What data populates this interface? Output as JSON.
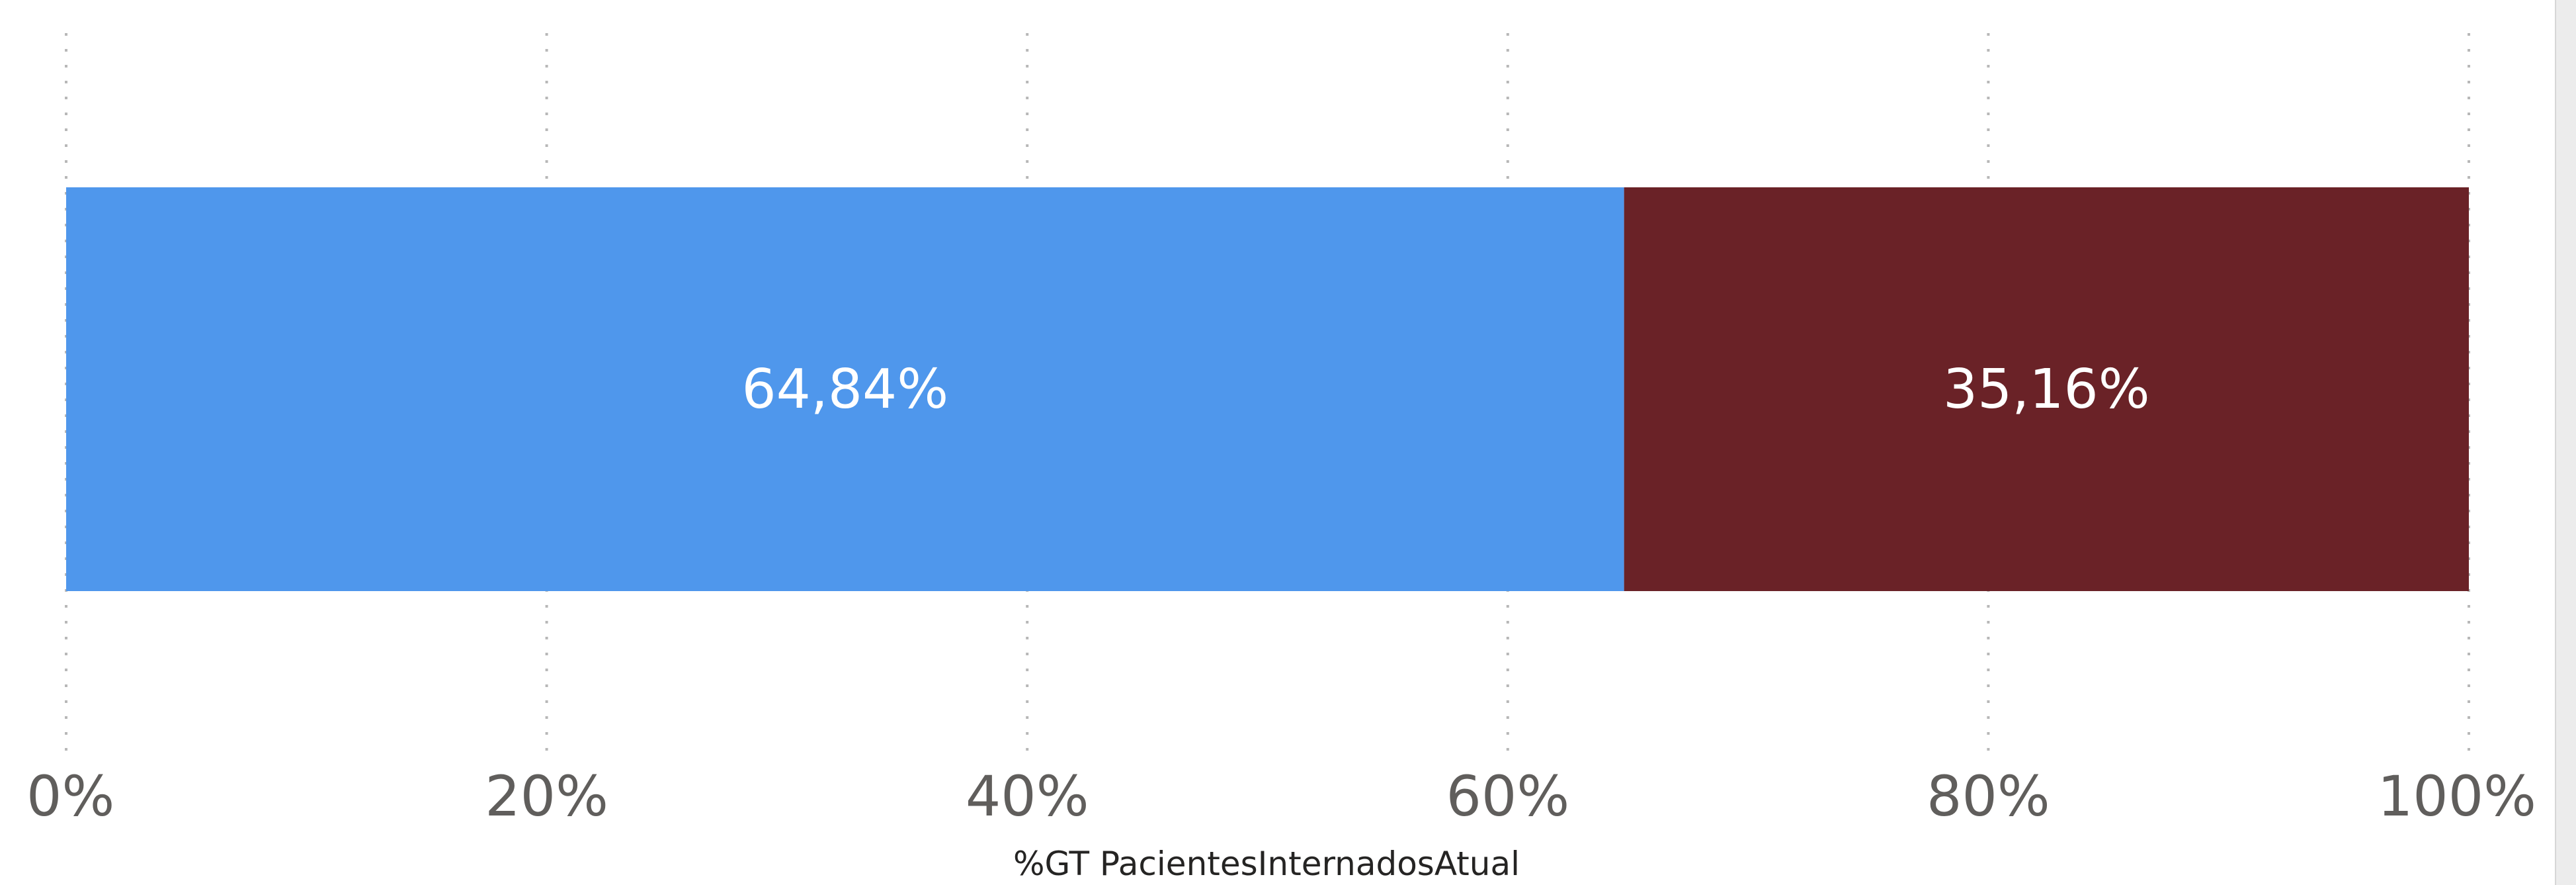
{
  "chart_data": {
    "type": "bar",
    "orientation": "horizontal",
    "stacked": "100%",
    "title": "",
    "xlabel": "%GT PacientesInternadosAtual",
    "ylabel": "",
    "xlim": [
      0,
      100
    ],
    "x_ticks": [
      "0%",
      "20%",
      "40%",
      "60%",
      "80%",
      "100%"
    ],
    "x_tick_values": [
      0,
      20,
      40,
      60,
      80,
      100
    ],
    "grid": "vertical dashed",
    "series": [
      {
        "values": [
          64.84
        ],
        "data_label": "64,84%",
        "color": "#4F97EC"
      },
      {
        "values": [
          35.16
        ],
        "data_label": "35,16%",
        "color": "#6A2227"
      }
    ]
  }
}
